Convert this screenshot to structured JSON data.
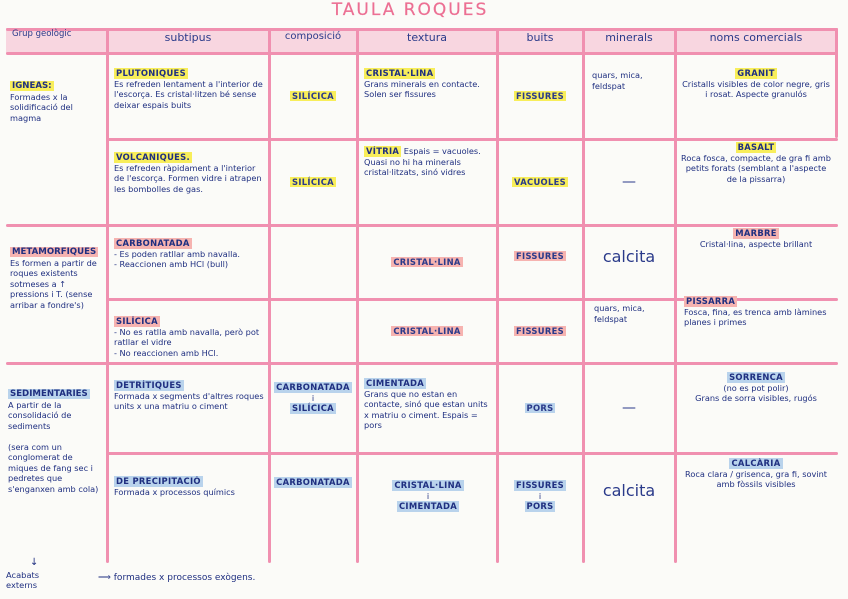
{
  "title": "TAULA ROQUES",
  "headers": {
    "grup": "Grup geològic",
    "subtipus": "subtipus",
    "composicio": "composició",
    "textura": "textura",
    "buits": "buits",
    "minerals": "minerals",
    "noms": "noms comercials"
  },
  "igneas": {
    "title": "IGNEAS:",
    "desc": "Formades x la solidificació del magma",
    "plutoniques": {
      "title": "PLUTONIQUES",
      "desc": "Es refreden lentament a l'interior de l'escorça. Es cristal·litzen bé sense deixar espais buits",
      "comp": "SILÍCICA",
      "textura_title": "CRISTAL·LINA",
      "textura_desc": "Grans minerals en contacte. Solen ser fissures",
      "buits": "FISSURES",
      "minerals": "quars, mica, feldspat",
      "nom": "GRANIT",
      "nom_desc": "Cristalls visibles de color negre, gris i rosat. Aspecte granulós"
    },
    "volcaniques": {
      "title": "VOLCANIQUES.",
      "desc": "Es refreden ràpidament a l'interior de l'escorça. Formen vidre i atrapen les bombolles de gas.",
      "comp": "SILÍCICA",
      "textura_title": "VÍTRIA",
      "textura_desc": "Espais = vacuoles. Quasi no hi ha minerals cristal·litzats, sinó vidres",
      "buits": "VACUOLES",
      "minerals": "—",
      "nom": "BASALT",
      "nom_desc": "Roca fosca, compacte, de gra fi amb petits forats (semblant a l'aspecte de la pissarra)"
    }
  },
  "metamorfiques": {
    "title": "METAMORFIQUES",
    "desc": "Es formen a partir de roques existents sotmeses a ↑ pressions i T. (sense arribar a fondre's)",
    "carbonatada": {
      "title": "CARBONATADA",
      "desc1": "- Es poden ratllar amb navalla.",
      "desc2": "- Reaccionen amb HCl (bull)",
      "textura": "CRISTAL·LINA",
      "buits": "FISSURES",
      "minerals": "calcita",
      "nom": "MARBRE",
      "nom_desc": "Cristal·lina, aspecte brillant"
    },
    "silicica": {
      "title": "SILÍCICA",
      "desc1": "- No es ratlla amb navalla, però pot ratllar el vidre",
      "desc2": "- No reaccionen amb HCl.",
      "textura": "CRISTAL·LINA",
      "buits": "FISSURES",
      "minerals": "quars, mica, feldspat",
      "nom": "PISSARRA",
      "nom_desc": "Fosca, fina, es trenca amb làmines planes i primes"
    }
  },
  "sedimentaries": {
    "title": "SEDIMENTARIES",
    "desc": "A partir de la consolidació de sediments",
    "desc2": "(sera com un conglomerat de miques de fang sec i pedretes que s'enganxen amb cola)",
    "detritiques": {
      "title": "DETRÍTIQUES",
      "desc": "Formada x segments d'altres roques units x una matriu o ciment",
      "comp1": "CARBONATADA",
      "comp_i": "i",
      "comp2": "SILÍCICA",
      "textura_title": "CIMENTADA",
      "textura_desc": "Grans que no estan en contacte, sinó que estan units x matriu o ciment. Espais = pors",
      "buits": "PORS",
      "minerals": "—",
      "nom": "SORRENCA",
      "nom_desc1": "(no es pot polir)",
      "nom_desc2": "Grans de sorra visibles, rugós"
    },
    "precipitacio": {
      "title": "DE PRECIPITACIÓ",
      "desc": "Formada x processos químics",
      "comp": "CARBONATADA",
      "textura1": "CRISTAL·LINA",
      "textura_i": "i",
      "textura2": "CIMENTADA",
      "buits1": "FISSURES",
      "buits_i": "i",
      "buits2": "PORS",
      "minerals": "calcita",
      "nom": "CALCÀRIA",
      "nom_desc": "Roca clara / grisenca, gra fi, sovint amb fòssils visibles"
    }
  },
  "footer": {
    "arrow": "↓",
    "label": "Acabats externs",
    "text": "⟹ formades x processos exògens."
  },
  "colors": {
    "yellow": "#f8ee5a",
    "pink": "#f6b3b0",
    "blue": "#b9d3ec",
    "lines": "#f090b0",
    "ink": "#1f2f80"
  }
}
